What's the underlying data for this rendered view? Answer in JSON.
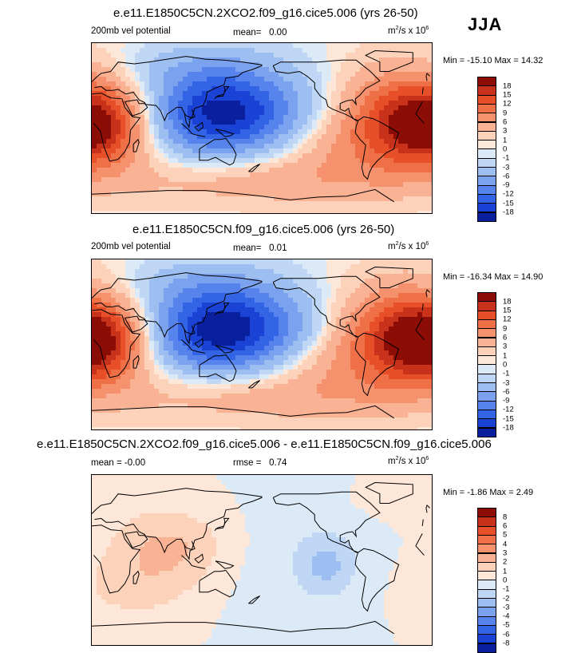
{
  "season": "JJA",
  "palette": {
    "pos": [
      "#fde7d8",
      "#fcd2bb",
      "#f9b294",
      "#f5926d",
      "#ef6f47",
      "#e64f28",
      "#c8321a",
      "#8c0c06"
    ],
    "neg": [
      "#dceaf8",
      "#bfd7f5",
      "#9dbef1",
      "#7aa2ee",
      "#5683ec",
      "#3464e6",
      "#1a43d6",
      "#0a1f9e"
    ],
    "zero": "#ffffff",
    "coast": "#000000"
  },
  "panels": [
    {
      "title": "e.e11.E1850C5CN.2XCO2.f09_g16.cice5.006 (yrs 26-50)",
      "variable": "200mb vel potential",
      "mean_label": "mean=",
      "mean_value": "0.00",
      "units": "m",
      "units_rest": "/s x 10",
      "units_exp": "6",
      "minmax": "Min = -15.10 Max =  14.32",
      "colorbar_ticks": [
        "18",
        "15",
        "12",
        "9",
        "6",
        "3",
        "1",
        "0",
        "-1",
        "-3",
        "-6",
        "-9",
        "-12",
        "-15",
        "-18"
      ]
    },
    {
      "title": "e.e11.E1850C5CN.f09_g16.cice5.006 (yrs 26-50)",
      "variable": "200mb vel potential",
      "mean_label": "mean=",
      "mean_value": "0.01",
      "units": "m",
      "units_rest": "/s x 10",
      "units_exp": "6",
      "minmax": "Min = -16.34 Max =  14.90",
      "colorbar_ticks": [
        "18",
        "15",
        "12",
        "9",
        "6",
        "3",
        "1",
        "0",
        "-1",
        "-3",
        "-6",
        "-9",
        "-12",
        "-15",
        "-18"
      ]
    },
    {
      "title": "e.e11.E1850C5CN.2XCO2.f09_g16.cice5.006 - e.e11.E1850C5CN.f09_g16.cice5.006",
      "mean_label": "mean =",
      "mean_value": "-0.00",
      "rmse_label": "rmse =",
      "rmse_value": "0.74",
      "units": "m",
      "units_rest": "/s x 10",
      "units_exp": "6",
      "minmax": "Min = -1.86 Max =  2.49",
      "colorbar_ticks": [
        "8",
        "6",
        "5",
        "4",
        "3",
        "2",
        "1",
        "0",
        "-1",
        "-2",
        "-3",
        "-4",
        "-5",
        "-6",
        "-8"
      ]
    }
  ],
  "chart_data": [
    {
      "type": "heatmap",
      "title": "e.e11.E1850C5CN.2XCO2.f09_g16.cice5.006 (yrs 26-50)",
      "variable": "200mb vel potential",
      "units": "m^2/s x 10^6",
      "mean": 0.0,
      "min": -15.1,
      "max": 14.32,
      "levels": [
        -18,
        -15,
        -12,
        -9,
        -6,
        -3,
        -1,
        0,
        1,
        3,
        6,
        9,
        12,
        15,
        18
      ],
      "lon_range": [
        0,
        360
      ],
      "lat_range": [
        -90,
        90
      ],
      "features": [
        {
          "kind": "min",
          "lon": 130,
          "lat": 15,
          "value": -15.1
        },
        {
          "kind": "max",
          "lon": 330,
          "lat": 10,
          "value": 14.32
        },
        {
          "kind": "max",
          "lon": 10,
          "lat": 0,
          "value": 12
        }
      ]
    },
    {
      "type": "heatmap",
      "title": "e.e11.E1850C5CN.f09_g16.cice5.006 (yrs 26-50)",
      "variable": "200mb vel potential",
      "units": "m^2/s x 10^6",
      "mean": 0.01,
      "min": -16.34,
      "max": 14.9,
      "levels": [
        -18,
        -15,
        -12,
        -9,
        -6,
        -3,
        -1,
        0,
        1,
        3,
        6,
        9,
        12,
        15,
        18
      ],
      "lon_range": [
        0,
        360
      ],
      "lat_range": [
        -90,
        90
      ],
      "features": [
        {
          "kind": "min",
          "lon": 130,
          "lat": 15,
          "value": -16.34
        },
        {
          "kind": "max",
          "lon": 330,
          "lat": 5,
          "value": 14.9
        },
        {
          "kind": "max",
          "lon": 10,
          "lat": 0,
          "value": 13
        }
      ]
    },
    {
      "type": "heatmap",
      "title": "e.e11.E1850C5CN.2XCO2.f09_g16.cice5.006 - e.e11.E1850C5CN.f09_g16.cice5.006",
      "units": "m^2/s x 10^6",
      "mean": -0.0,
      "rmse": 0.74,
      "min": -1.86,
      "max": 2.49,
      "levels": [
        -8,
        -6,
        -5,
        -4,
        -3,
        -2,
        -1,
        0,
        1,
        2,
        3,
        4,
        5,
        6,
        8
      ],
      "lon_range": [
        0,
        360
      ],
      "lat_range": [
        -90,
        90
      ],
      "features": [
        {
          "kind": "max",
          "lon": 90,
          "lat": 15,
          "value": 2.49
        },
        {
          "kind": "min",
          "lon": 250,
          "lat": -5,
          "value": -1.86
        }
      ]
    }
  ]
}
